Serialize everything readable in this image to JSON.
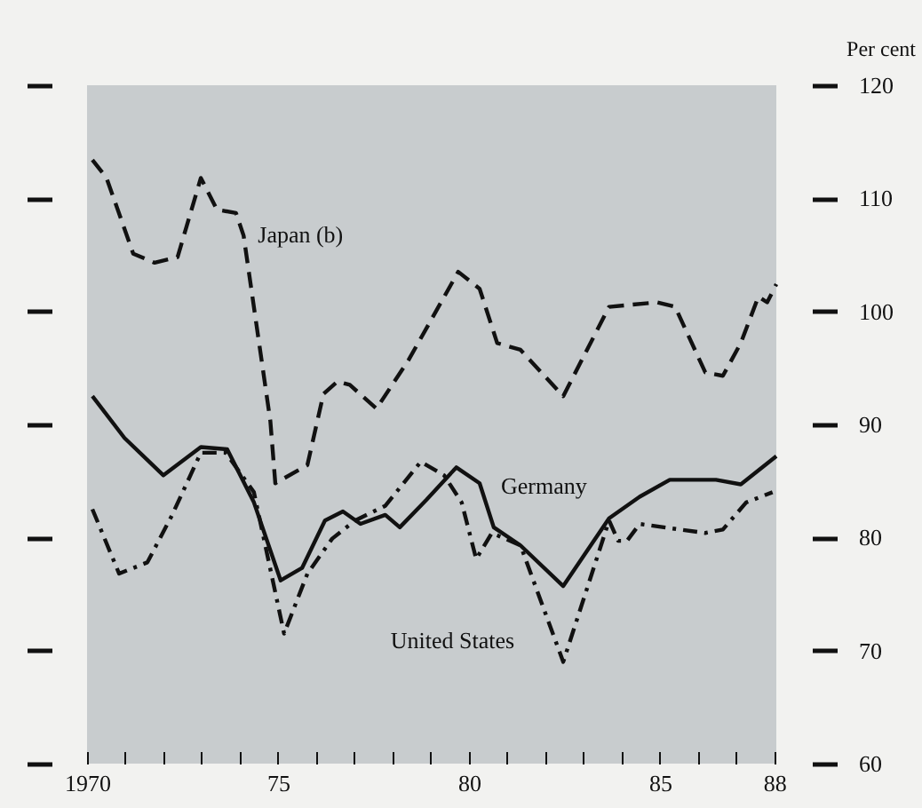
{
  "chart_data": {
    "type": "line",
    "ylabel": "Per cent",
    "xlim": [
      1970,
      1988.05
    ],
    "ylim": [
      60,
      120
    ],
    "xticks": [
      {
        "value": 1970,
        "label": "1970"
      },
      {
        "value": 1971,
        "label": null
      },
      {
        "value": 1972,
        "label": null
      },
      {
        "value": 1973,
        "label": null
      },
      {
        "value": 1974,
        "label": null
      },
      {
        "value": 1975,
        "label": "75"
      },
      {
        "value": 1976,
        "label": null
      },
      {
        "value": 1977,
        "label": null
      },
      {
        "value": 1978,
        "label": null
      },
      {
        "value": 1979,
        "label": null
      },
      {
        "value": 1980,
        "label": "80"
      },
      {
        "value": 1981,
        "label": null
      },
      {
        "value": 1982,
        "label": null
      },
      {
        "value": 1983,
        "label": null
      },
      {
        "value": 1984,
        "label": null
      },
      {
        "value": 1985,
        "label": "85"
      },
      {
        "value": 1986,
        "label": null
      },
      {
        "value": 1987,
        "label": null
      },
      {
        "value": 1988,
        "label": "88"
      }
    ],
    "yticks": [
      60,
      70,
      80,
      90,
      100,
      110,
      120
    ],
    "grid": false,
    "series": [
      {
        "name": "Japan (b)",
        "color": "#111111",
        "line_style": "dashed",
        "x": [
          1970.14,
          1970.51,
          1971.21,
          1971.77,
          1972.37,
          1972.98,
          1973.4,
          1973.9,
          1974.1,
          1974.8,
          1974.93,
          1975.77,
          1976.19,
          1976.56,
          1976.88,
          1977.58,
          1978.42,
          1979.72,
          1980.28,
          1980.74,
          1981.35,
          1982.47,
          1983.67,
          1984.93,
          1985.4,
          1986.19,
          1986.65,
          1987.12,
          1987.58,
          1987.81,
          1988.05
        ],
        "values": [
          113.4,
          111.8,
          105.1,
          104.3,
          104.8,
          111.8,
          109,
          108.7,
          106.7,
          90.3,
          84.8,
          86.4,
          92.7,
          93.8,
          93.5,
          91.4,
          95.7,
          103.5,
          102,
          97.2,
          96.6,
          92.5,
          100.4,
          100.8,
          100.4,
          94.6,
          94.3,
          97.2,
          101.3,
          100.8,
          102.4
        ]
      },
      {
        "name": "Germany",
        "color": "#111111",
        "line_style": "solid",
        "x": [
          1970.14,
          1970.98,
          1972.0,
          1972.98,
          1973.67,
          1974.37,
          1975.07,
          1975.63,
          1976.23,
          1976.7,
          1977.16,
          1977.81,
          1978.19,
          1978.88,
          1979.67,
          1980.28,
          1980.65,
          1981.35,
          1982.47,
          1983.67,
          1984.47,
          1985.26,
          1986.47,
          1987.12,
          1988.05
        ],
        "values": [
          92.5,
          88.8,
          85.5,
          88,
          87.8,
          83.1,
          76.2,
          77.3,
          81.5,
          82.3,
          81.2,
          82,
          80.9,
          83.3,
          86.2,
          84.8,
          80.9,
          79.3,
          75.7,
          81.7,
          83.6,
          85.1,
          85.1,
          84.7,
          87.2
        ]
      },
      {
        "name": "United States",
        "color": "#111111",
        "line_style": "dashdot",
        "x": [
          1970.14,
          1970.84,
          1971.58,
          1972.23,
          1972.98,
          1973.63,
          1974.37,
          1975.16,
          1975.77,
          1976.42,
          1977.02,
          1977.81,
          1978.74,
          1979.35,
          1979.81,
          1980.19,
          1980.6,
          1981.35,
          1982.47,
          1983.67,
          1983.91,
          1984.14,
          1984.47,
          1985.53,
          1986.19,
          1986.65,
          1987.26,
          1987.95
        ],
        "values": [
          82.5,
          76.8,
          77.8,
          82,
          87.5,
          87.5,
          84,
          71.5,
          76.8,
          79.9,
          81.5,
          82.8,
          86.7,
          85.5,
          83.1,
          78.1,
          80.4,
          79.3,
          69,
          81.5,
          79.7,
          79.7,
          81.2,
          80.7,
          80.4,
          80.7,
          83.1,
          84
        ]
      }
    ]
  }
}
